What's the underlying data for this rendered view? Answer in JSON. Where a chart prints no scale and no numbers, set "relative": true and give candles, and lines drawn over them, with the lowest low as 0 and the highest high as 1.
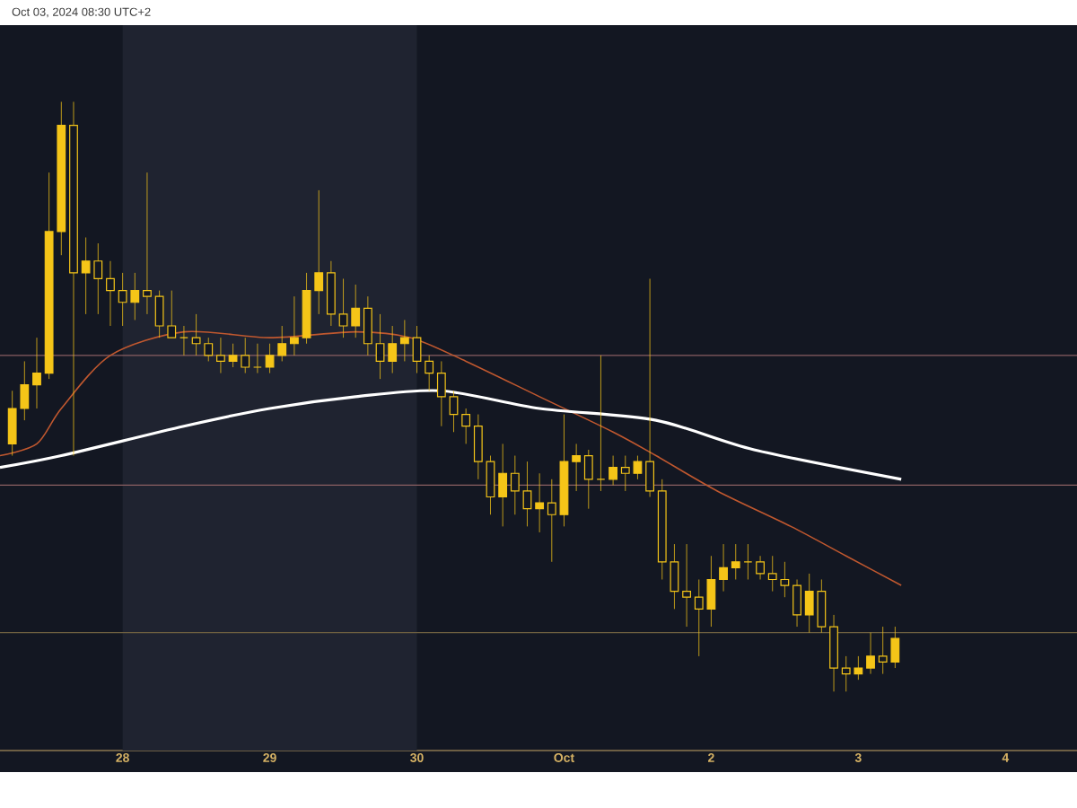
{
  "chart_data": {
    "type": "candlestick",
    "relative": true,
    "color": "#f5c518",
    "annotations": [
      "Oct 03, 2024 08:30 UTC+2"
    ],
    "x": [
      "2024-09-27T06:00",
      "2024-09-27T08:00",
      "2024-09-27T10:00",
      "2024-09-27T12:00",
      "2024-09-27T14:00",
      "2024-09-27T16:00",
      "2024-09-27T18:00",
      "2024-09-27T20:00",
      "2024-09-27T22:00",
      "2024-09-28T00:00",
      "2024-09-28T02:00",
      "2024-09-28T04:00",
      "2024-09-28T06:00",
      "2024-09-28T08:00",
      "2024-09-28T10:00",
      "2024-09-28T12:00",
      "2024-09-28T14:00",
      "2024-09-28T16:00",
      "2024-09-28T18:00",
      "2024-09-28T20:00",
      "2024-09-28T22:00",
      "2024-09-29T00:00",
      "2024-09-29T02:00",
      "2024-09-29T04:00",
      "2024-09-29T06:00",
      "2024-09-29T08:00",
      "2024-09-29T10:00",
      "2024-09-29T12:00",
      "2024-09-29T14:00",
      "2024-09-29T16:00",
      "2024-09-29T18:00",
      "2024-09-29T20:00",
      "2024-09-29T22:00",
      "2024-09-30T00:00",
      "2024-09-30T02:00",
      "2024-09-30T04:00",
      "2024-09-30T06:00",
      "2024-09-30T08:00",
      "2024-09-30T10:00",
      "2024-09-30T12:00",
      "2024-09-30T14:00",
      "2024-09-30T16:00",
      "2024-09-30T18:00",
      "2024-09-30T20:00",
      "2024-09-30T22:00",
      "2024-10-01T00:00",
      "2024-10-01T02:00",
      "2024-10-01T04:00",
      "2024-10-01T06:00",
      "2024-10-01T08:00",
      "2024-10-01T10:00",
      "2024-10-01T12:00",
      "2024-10-01T14:00",
      "2024-10-01T16:00",
      "2024-10-01T18:00",
      "2024-10-01T20:00",
      "2024-10-01T22:00",
      "2024-10-02T00:00",
      "2024-10-02T02:00",
      "2024-10-02T04:00",
      "2024-10-02T06:00",
      "2024-10-02T08:00",
      "2024-10-02T10:00",
      "2024-10-02T12:00",
      "2024-10-02T14:00",
      "2024-10-02T16:00",
      "2024-10-02T18:00",
      "2024-10-02T20:00",
      "2024-10-02T22:00",
      "2024-10-03T00:00",
      "2024-10-03T02:00",
      "2024-10-03T04:00",
      "2024-10-03T06:00"
    ],
    "ohlc": [
      [
        0.42,
        0.51,
        0.4,
        0.48
      ],
      [
        0.48,
        0.56,
        0.46,
        0.52
      ],
      [
        0.52,
        0.6,
        0.48,
        0.54
      ],
      [
        0.54,
        0.88,
        0.53,
        0.78
      ],
      [
        0.78,
        1.0,
        0.74,
        0.96
      ],
      [
        0.96,
        1.0,
        0.4,
        0.71
      ],
      [
        0.71,
        0.77,
        0.64,
        0.73
      ],
      [
        0.73,
        0.76,
        0.64,
        0.7
      ],
      [
        0.7,
        0.73,
        0.62,
        0.68
      ],
      [
        0.68,
        0.71,
        0.62,
        0.66
      ],
      [
        0.66,
        0.71,
        0.63,
        0.68
      ],
      [
        0.68,
        0.88,
        0.64,
        0.67
      ],
      [
        0.67,
        0.68,
        0.6,
        0.62
      ],
      [
        0.62,
        0.68,
        0.6,
        0.6
      ],
      [
        0.6,
        0.62,
        0.57,
        0.6
      ],
      [
        0.6,
        0.64,
        0.57,
        0.59
      ],
      [
        0.59,
        0.6,
        0.56,
        0.57
      ],
      [
        0.57,
        0.6,
        0.54,
        0.56
      ],
      [
        0.56,
        0.59,
        0.55,
        0.57
      ],
      [
        0.57,
        0.6,
        0.54,
        0.55
      ],
      [
        0.55,
        0.59,
        0.54,
        0.55
      ],
      [
        0.55,
        0.59,
        0.54,
        0.57
      ],
      [
        0.57,
        0.62,
        0.56,
        0.59
      ],
      [
        0.59,
        0.67,
        0.57,
        0.6
      ],
      [
        0.6,
        0.71,
        0.59,
        0.68
      ],
      [
        0.68,
        0.85,
        0.64,
        0.71
      ],
      [
        0.71,
        0.73,
        0.62,
        0.64
      ],
      [
        0.64,
        0.7,
        0.6,
        0.62
      ],
      [
        0.62,
        0.69,
        0.6,
        0.65
      ],
      [
        0.65,
        0.67,
        0.57,
        0.59
      ],
      [
        0.59,
        0.64,
        0.53,
        0.56
      ],
      [
        0.56,
        0.62,
        0.54,
        0.59
      ],
      [
        0.59,
        0.63,
        0.56,
        0.6
      ],
      [
        0.6,
        0.62,
        0.54,
        0.56
      ],
      [
        0.56,
        0.57,
        0.51,
        0.54
      ],
      [
        0.54,
        0.56,
        0.45,
        0.5
      ],
      [
        0.5,
        0.51,
        0.44,
        0.47
      ],
      [
        0.47,
        0.48,
        0.42,
        0.45
      ],
      [
        0.45,
        0.47,
        0.36,
        0.39
      ],
      [
        0.39,
        0.4,
        0.3,
        0.33
      ],
      [
        0.33,
        0.42,
        0.28,
        0.37
      ],
      [
        0.37,
        0.4,
        0.3,
        0.34
      ],
      [
        0.34,
        0.39,
        0.28,
        0.31
      ],
      [
        0.31,
        0.37,
        0.27,
        0.32
      ],
      [
        0.32,
        0.36,
        0.22,
        0.3
      ],
      [
        0.3,
        0.47,
        0.28,
        0.39
      ],
      [
        0.39,
        0.42,
        0.34,
        0.4
      ],
      [
        0.4,
        0.41,
        0.31,
        0.36
      ],
      [
        0.36,
        0.57,
        0.34,
        0.36
      ],
      [
        0.36,
        0.4,
        0.35,
        0.38
      ],
      [
        0.38,
        0.4,
        0.34,
        0.37
      ],
      [
        0.37,
        0.4,
        0.36,
        0.39
      ],
      [
        0.39,
        0.7,
        0.33,
        0.34
      ],
      [
        0.34,
        0.36,
        0.19,
        0.22
      ],
      [
        0.22,
        0.25,
        0.14,
        0.17
      ],
      [
        0.17,
        0.25,
        0.11,
        0.16
      ],
      [
        0.16,
        0.19,
        0.06,
        0.14
      ],
      [
        0.14,
        0.23,
        0.11,
        0.19
      ],
      [
        0.19,
        0.25,
        0.17,
        0.21
      ],
      [
        0.21,
        0.25,
        0.19,
        0.22
      ],
      [
        0.22,
        0.25,
        0.19,
        0.22
      ],
      [
        0.22,
        0.23,
        0.19,
        0.2
      ],
      [
        0.2,
        0.23,
        0.17,
        0.19
      ],
      [
        0.19,
        0.22,
        0.16,
        0.18
      ],
      [
        0.18,
        0.19,
        0.11,
        0.13
      ],
      [
        0.13,
        0.2,
        0.1,
        0.17
      ],
      [
        0.17,
        0.19,
        0.1,
        0.11
      ],
      [
        0.11,
        0.13,
        0.0,
        0.04
      ],
      [
        0.04,
        0.06,
        0.0,
        0.03
      ],
      [
        0.03,
        0.06,
        0.02,
        0.04
      ],
      [
        0.04,
        0.1,
        0.03,
        0.06
      ],
      [
        0.06,
        0.11,
        0.03,
        0.05
      ],
      [
        0.05,
        0.11,
        0.04,
        0.09
      ]
    ],
    "series": [
      {
        "type": "line",
        "color": "#c0582f",
        "x": [
          "2024-09-27T04:00",
          "2024-09-27T10:00",
          "2024-09-27T14:00",
          "2024-09-27T22:00",
          "2024-09-28T10:00",
          "2024-09-29T00:00",
          "2024-09-29T14:00",
          "2024-09-29T23:00",
          "2024-09-30T08:00",
          "2024-09-30T20:00",
          "2024-10-01T08:00",
          "2024-10-01T15:00",
          "2024-10-02T01:00",
          "2024-10-02T13:00",
          "2024-10-02T22:00",
          "2024-10-03T07:00"
        ],
        "values": [
          0.4,
          0.42,
          0.48,
          0.57,
          0.61,
          0.6,
          0.61,
          0.6,
          0.56,
          0.5,
          0.44,
          0.4,
          0.34,
          0.28,
          0.23,
          0.18
        ]
      },
      {
        "type": "line",
        "color": "#ffffff",
        "x": [
          "2024-09-27T04:00",
          "2024-09-27T14:00",
          "2024-09-28T10:00",
          "2024-09-29T00:00",
          "2024-09-29T14:00",
          "2024-09-30T04:00",
          "2024-09-30T20:00",
          "2024-10-01T15:00",
          "2024-10-02T07:00",
          "2024-10-03T07:00"
        ],
        "values": [
          0.38,
          0.4,
          0.45,
          0.48,
          0.5,
          0.51,
          0.48,
          0.46,
          0.41,
          0.36
        ]
      }
    ],
    "ref_lines": [
      {
        "axis": "y",
        "value": 0.57,
        "color": "#8a5f62"
      },
      {
        "axis": "y",
        "value": 0.35,
        "color": "#8a5f62"
      },
      {
        "axis": "y",
        "value": 0.1,
        "color": "#6e6040"
      }
    ],
    "bands": [
      {
        "axis": "x",
        "from": "2024-09-28",
        "to": "2024-09-30",
        "color": "#1f2330"
      }
    ],
    "xlim": [
      "2024-09-27T04:00",
      "2024-10-04T11:40"
    ],
    "xticks": [
      {
        "value": "2024-09-28",
        "label": "28"
      },
      {
        "value": "2024-09-29",
        "label": "29"
      },
      {
        "value": "2024-09-30",
        "label": "30"
      },
      {
        "value": "2024-10-01",
        "label": "Oct"
      },
      {
        "value": "2024-10-02",
        "label": "2"
      },
      {
        "value": "2024-10-03",
        "label": "3"
      },
      {
        "value": "2024-10-04",
        "label": "4"
      }
    ]
  }
}
